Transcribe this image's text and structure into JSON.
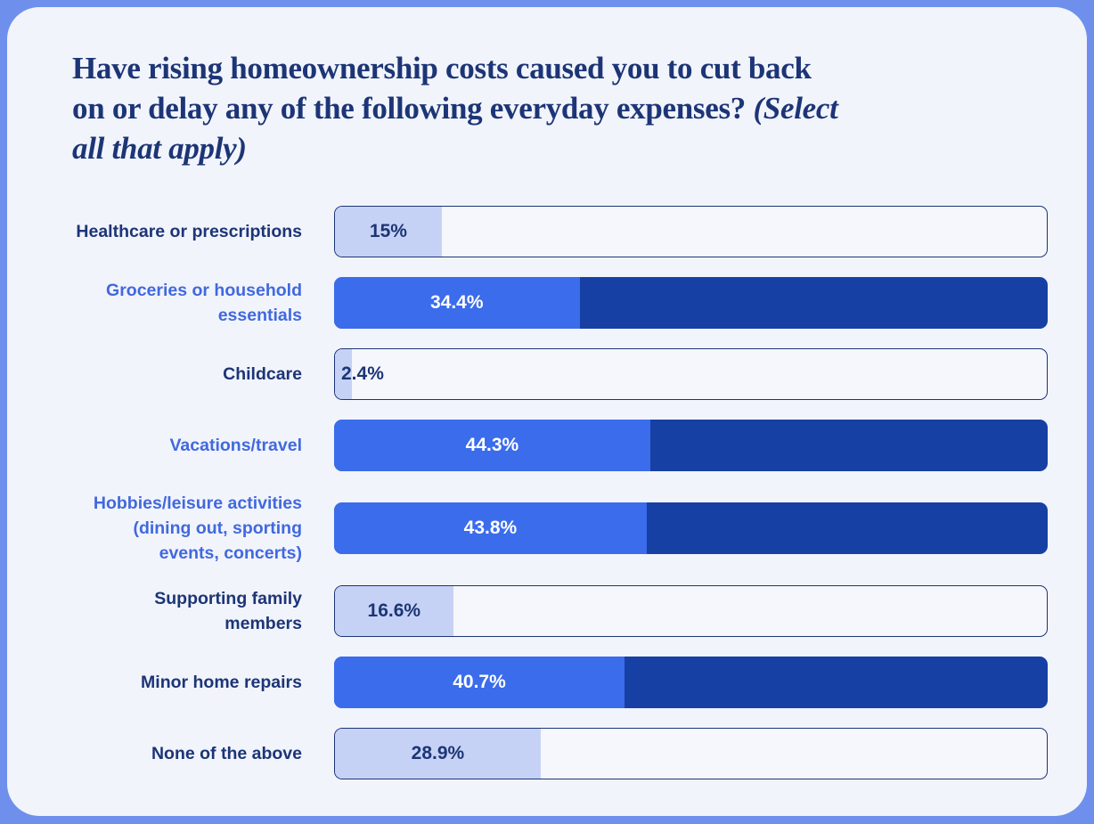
{
  "title": {
    "main": "Have rising homeownership costs caused you to cut back\non or delay any of the following everyday expenses?",
    "italic": "(Select\nall that apply)"
  },
  "colors": {
    "outer_background": "#6E90EC",
    "card_background": "#F2F4FC",
    "navy_text": "#1C3576",
    "accent_label": "#4169DE",
    "bright_bar_fill": "#3A6CEC",
    "bright_bar_track": "#1740A5",
    "light_bar_fill": "#C6D2F5",
    "light_bar_track": "#F5F7FD",
    "value_on_bright": "#FFFFFF"
  },
  "chart_data": {
    "type": "bar",
    "orientation": "horizontal",
    "title": "Have rising homeownership costs caused you to cut back on or delay any of the following everyday expenses? (Select all that apply)",
    "xlabel": "",
    "ylabel": "",
    "xlim": [
      0,
      100
    ],
    "grid": false,
    "legend": false,
    "categories": [
      "Healthcare or prescriptions",
      "Groceries or household essentials",
      "Childcare",
      "Vacations/travel",
      "Hobbies/leisure activities (dining out, sporting events, concerts)",
      "Supporting family members",
      "Minor home repairs",
      "None of the above"
    ],
    "values": [
      15,
      34.4,
      2.4,
      44.3,
      43.8,
      16.6,
      40.7,
      28.9
    ],
    "value_labels": [
      "15%",
      "34.4%",
      "2.4%",
      "44.3%",
      "43.8%",
      "16.6%",
      "40.7%",
      "28.9%"
    ],
    "rows": [
      {
        "label": "Healthcare or prescriptions",
        "value": 15,
        "display": "15%",
        "highlighted": false,
        "label_accent": false
      },
      {
        "label": "Groceries or household\nessentials",
        "value": 34.4,
        "display": "34.4%",
        "highlighted": true,
        "label_accent": true
      },
      {
        "label": "Childcare",
        "value": 2.4,
        "display": "2.4%",
        "highlighted": false,
        "label_accent": false
      },
      {
        "label": "Vacations/travel",
        "value": 44.3,
        "display": "44.3%",
        "highlighted": true,
        "label_accent": true
      },
      {
        "label": "Hobbies/leisure activities\n(dining out, sporting\nevents, concerts)",
        "value": 43.8,
        "display": "43.8%",
        "highlighted": true,
        "label_accent": true
      },
      {
        "label": "Supporting family\nmembers",
        "value": 16.6,
        "display": "16.6%",
        "highlighted": false,
        "label_accent": false
      },
      {
        "label": "Minor home repairs",
        "value": 40.7,
        "display": "40.7%",
        "highlighted": true,
        "label_accent": false
      },
      {
        "label": "None of the above",
        "value": 28.9,
        "display": "28.9%",
        "highlighted": false,
        "label_accent": false
      }
    ]
  }
}
